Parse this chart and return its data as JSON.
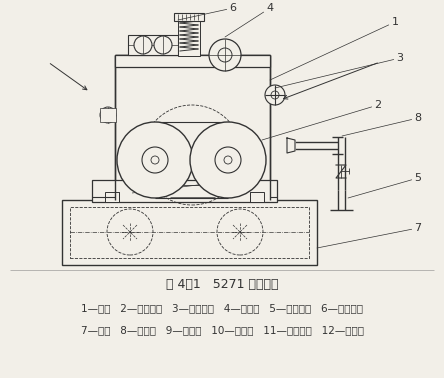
{
  "title": "图 4－1   5271 型绳洗机",
  "legend_line1": "1—机架   2—主动轧辊   3—被动轧辊   4—轧液辊   5—轧槽轧辊   6—加压装置",
  "legend_line2": "7—轧槽   8—喷水管   9—进布圈   10—出布圈   11—传动装置   12—分布棒",
  "bg_color": "#f2efe8",
  "line_color": "#333333",
  "title_fontsize": 9,
  "legend_fontsize": 7.5
}
